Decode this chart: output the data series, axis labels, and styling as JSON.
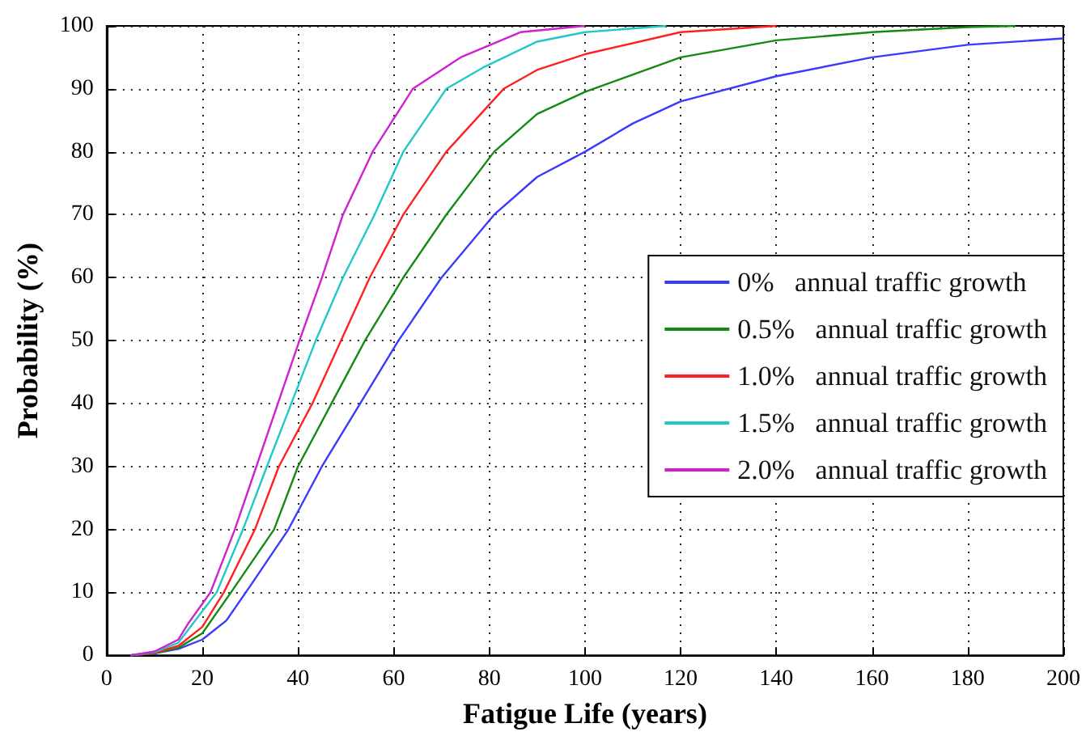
{
  "chart_data": {
    "type": "line",
    "xlabel": "Fatigue Life (years)",
    "ylabel": "Probability (%)",
    "xlim": [
      0,
      200
    ],
    "xticks": [
      0,
      20,
      40,
      60,
      80,
      100,
      120,
      140,
      160,
      180,
      200
    ],
    "ylim": [
      0,
      100
    ],
    "yticks": [
      0,
      10,
      20,
      30,
      40,
      50,
      60,
      70,
      80,
      90,
      100
    ],
    "grid": true,
    "legend": "right",
    "marker": "none",
    "line_style": "solid",
    "series": [
      {
        "name": "0%   annual traffic growth",
        "color": "#3a3aff",
        "x": [
          5,
          10,
          15,
          20,
          25,
          30,
          38,
          45,
          53,
          61,
          70,
          81,
          90,
          100,
          110,
          120,
          140,
          160,
          180,
          200
        ],
        "values": [
          0,
          0.3,
          1,
          2.5,
          5.5,
          11,
          20,
          30,
          40,
          50,
          60,
          70,
          76,
          80,
          84.5,
          88,
          92,
          95,
          97,
          98
        ]
      },
      {
        "name": "0.5%   annual traffic growth",
        "color": "#138a13",
        "x": [
          5,
          10,
          15,
          20,
          26,
          35,
          40,
          47,
          54,
          62,
          71,
          81,
          90,
          100,
          120,
          140,
          160,
          180,
          190
        ],
        "values": [
          0,
          0.3,
          1.2,
          3.5,
          10,
          20,
          30,
          40,
          50,
          60,
          70,
          80,
          86,
          89.5,
          95,
          97.7,
          99,
          99.8,
          100
        ]
      },
      {
        "name": "1.0%   annual traffic growth",
        "color": "#ff2020",
        "x": [
          5,
          10,
          15,
          20,
          24.5,
          31,
          36,
          43,
          49,
          55,
          62,
          71,
          83,
          90,
          100,
          120,
          140
        ],
        "values": [
          0,
          0.4,
          1.5,
          4.5,
          10,
          20,
          30,
          40,
          50,
          60,
          70,
          80,
          90,
          93,
          95.5,
          99,
          100
        ]
      },
      {
        "name": "1.5%   annual traffic growth",
        "color": "#20c8c8",
        "x": [
          5,
          10,
          15,
          18,
          23,
          28.5,
          33.5,
          38.6,
          43.7,
          49.4,
          56,
          62,
          71,
          79,
          90,
          100,
          117
        ],
        "values": [
          0,
          0.5,
          2,
          5,
          10,
          20,
          30,
          40,
          50,
          60,
          70,
          80,
          90,
          93.5,
          97.5,
          99,
          100
        ]
      },
      {
        "name": "2.0%   annual traffic growth",
        "color": "#d020d0",
        "x": [
          5,
          10,
          15,
          17,
          21.7,
          26.8,
          31.3,
          35.8,
          40.3,
          45,
          49.4,
          55.6,
          64,
          74,
          86.5,
          100
        ],
        "values": [
          0,
          0.6,
          2.5,
          5,
          10,
          20,
          30,
          40,
          50,
          60,
          70,
          80,
          90,
          95,
          99,
          100
        ]
      }
    ]
  }
}
